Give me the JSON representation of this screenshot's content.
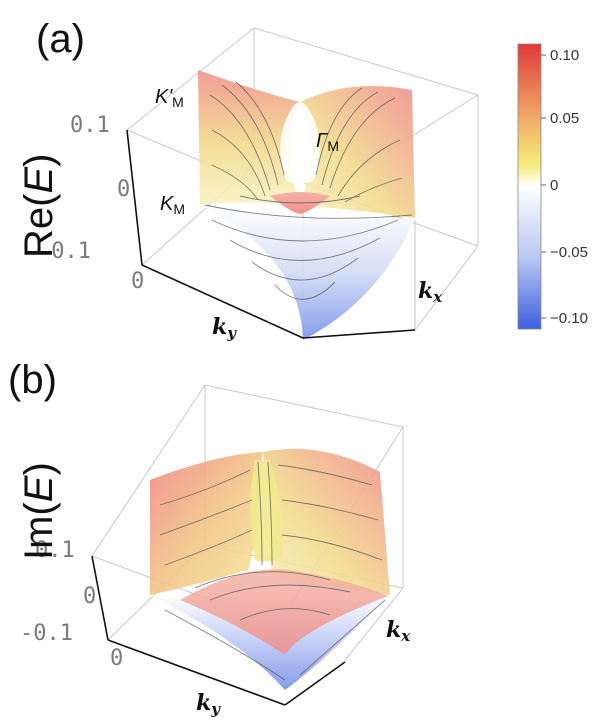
{
  "panels": [
    {
      "label": "(a)",
      "z_axis_title_prefix": "Re(",
      "z_axis_title_var": "E",
      "z_axis_title_suffix": ")",
      "z_ticks": [
        "0.1",
        "0",
        "-0.1"
      ],
      "ky_zero_tick": "0",
      "kx_label": "k",
      "kx_sub": "x",
      "ky_label": "k",
      "ky_sub": "y",
      "point_labels": [
        {
          "main": "K'",
          "sub": "M"
        },
        {
          "main": "Γ",
          "sub": "M"
        },
        {
          "main": "K",
          "sub": "M"
        }
      ]
    },
    {
      "label": "(b)",
      "z_axis_title_prefix": "Im(",
      "z_axis_title_var": "E",
      "z_axis_title_suffix": ")",
      "z_ticks": [
        "0.1",
        "0",
        "-0.1"
      ],
      "ky_zero_tick": "0",
      "kx_label": "k",
      "kx_sub": "x",
      "ky_label": "k",
      "ky_sub": "y"
    }
  ],
  "colorbar": {
    "ticks": [
      "0.10",
      "0.05",
      "0",
      "−0.05",
      "−0.10"
    ],
    "color_high": "#e03a3a",
    "color_mid_high": "#f2e36b",
    "color_mid": "#ffffff",
    "color_low": "#3b5fe0"
  }
}
